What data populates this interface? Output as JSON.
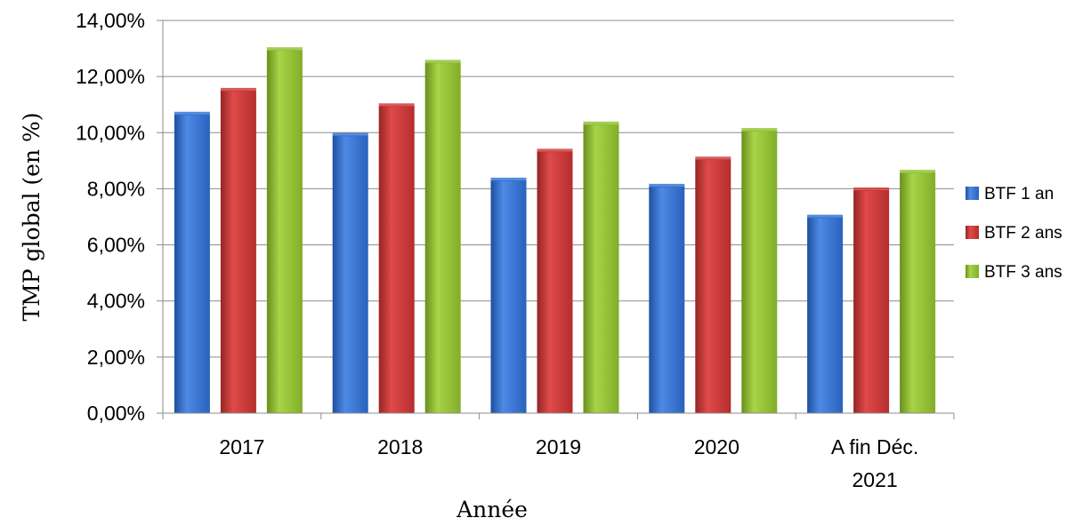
{
  "chart_data": {
    "type": "bar",
    "categories": [
      "2017",
      "2018",
      "2019",
      "2020",
      "A fin Déc.\n2021"
    ],
    "series": [
      {
        "name": "BTF 1 an",
        "values": [
          10.65,
          9.9,
          8.3,
          8.08,
          6.98
        ]
      },
      {
        "name": "BTF 2 ans",
        "values": [
          11.5,
          10.95,
          9.33,
          9.05,
          7.95
        ]
      },
      {
        "name": "BTF 3 ans",
        "values": [
          12.95,
          12.5,
          10.3,
          10.07,
          8.58
        ]
      }
    ],
    "xlabel": "Année",
    "ylabel": "TMP global (en %)",
    "ylim": [
      0,
      14
    ],
    "yticks": [
      "0,00%",
      "2,00%",
      "4,00%",
      "6,00%",
      "8,00%",
      "10,00%",
      "12,00%",
      "14,00%"
    ],
    "grid": true,
    "legend": "right",
    "colors": {
      "series": [
        "#2e6fd1",
        "#cc3333",
        "#8fbf2e"
      ],
      "grid": "#8c8c8c"
    }
  }
}
